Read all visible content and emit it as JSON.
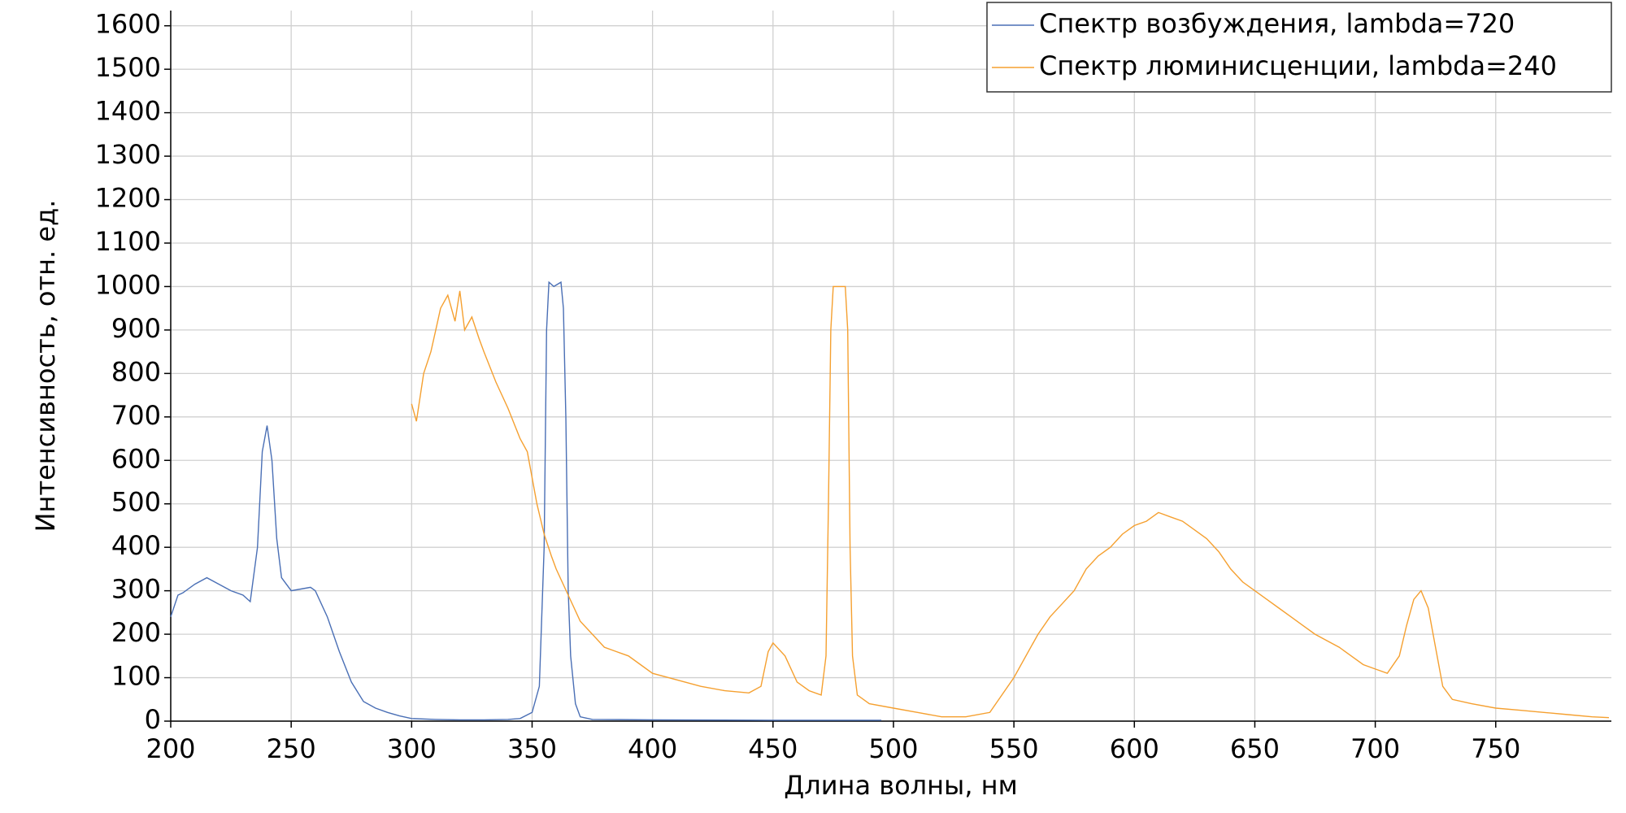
{
  "chart_data": {
    "type": "line",
    "x_label": "Длина волны, нм",
    "y_label": "Интенсивность, отн. ед.",
    "xlim": [
      200,
      798
    ],
    "ylim": [
      0,
      1635
    ],
    "xticks": [
      200,
      250,
      300,
      350,
      400,
      450,
      500,
      550,
      600,
      650,
      700,
      750
    ],
    "yticks": [
      0,
      100,
      200,
      300,
      400,
      500,
      600,
      700,
      800,
      900,
      1000,
      1100,
      1200,
      1300,
      1400,
      1500,
      1600
    ],
    "grid": true,
    "legend": "top-right",
    "series": [
      {
        "name": "Спектр возбуждения, lambda=720",
        "color": "#4a6fb5",
        "x": [
          200,
          203,
          205,
          210,
          215,
          220,
          225,
          230,
          233,
          236,
          238,
          240,
          242,
          244,
          246,
          250,
          255,
          258,
          260,
          265,
          270,
          275,
          280,
          285,
          290,
          295,
          300,
          310,
          320,
          330,
          340,
          345,
          350,
          353,
          355,
          356,
          357,
          359,
          362,
          363,
          364,
          365,
          366,
          368,
          370,
          375,
          400,
          450,
          495
        ],
        "values": [
          240,
          290,
          295,
          315,
          330,
          315,
          300,
          290,
          275,
          400,
          620,
          680,
          600,
          420,
          330,
          300,
          305,
          308,
          300,
          240,
          160,
          90,
          45,
          30,
          20,
          12,
          6,
          4,
          3,
          3,
          4,
          6,
          20,
          80,
          400,
          900,
          1010,
          1000,
          1010,
          950,
          700,
          300,
          150,
          40,
          10,
          4,
          3,
          2,
          2
        ]
      },
      {
        "name": "Спектр люминисценции, lambda=240",
        "color": "#f5a030",
        "x": [
          300,
          302,
          305,
          308,
          310,
          312,
          315,
          318,
          320,
          322,
          325,
          328,
          330,
          335,
          340,
          345,
          348,
          350,
          352,
          355,
          358,
          360,
          365,
          370,
          375,
          380,
          385,
          390,
          395,
          400,
          410,
          420,
          430,
          440,
          445,
          448,
          450,
          455,
          460,
          465,
          470,
          472,
          473,
          474,
          475,
          480,
          481,
          482,
          483,
          485,
          490,
          500,
          510,
          520,
          530,
          540,
          545,
          550,
          555,
          560,
          565,
          570,
          575,
          580,
          585,
          590,
          595,
          600,
          605,
          610,
          615,
          620,
          625,
          630,
          635,
          640,
          645,
          650,
          655,
          660,
          665,
          670,
          675,
          680,
          685,
          690,
          695,
          700,
          705,
          710,
          713,
          716,
          719,
          722,
          725,
          728,
          732,
          740,
          750,
          760,
          770,
          780,
          790,
          797
        ],
        "values": [
          730,
          690,
          800,
          850,
          900,
          950,
          980,
          920,
          990,
          900,
          930,
          880,
          850,
          780,
          720,
          650,
          620,
          560,
          500,
          430,
          380,
          350,
          290,
          230,
          200,
          170,
          160,
          150,
          130,
          110,
          95,
          80,
          70,
          65,
          80,
          160,
          180,
          150,
          90,
          70,
          60,
          150,
          500,
          900,
          1000,
          1000,
          900,
          400,
          150,
          60,
          40,
          30,
          20,
          10,
          10,
          20,
          60,
          100,
          150,
          200,
          240,
          270,
          300,
          350,
          380,
          400,
          430,
          450,
          460,
          480,
          470,
          460,
          440,
          420,
          390,
          350,
          320,
          300,
          280,
          260,
          240,
          220,
          200,
          185,
          170,
          150,
          130,
          120,
          110,
          150,
          220,
          280,
          300,
          260,
          170,
          80,
          50,
          40,
          30,
          25,
          20,
          15,
          10,
          8
        ]
      }
    ]
  }
}
